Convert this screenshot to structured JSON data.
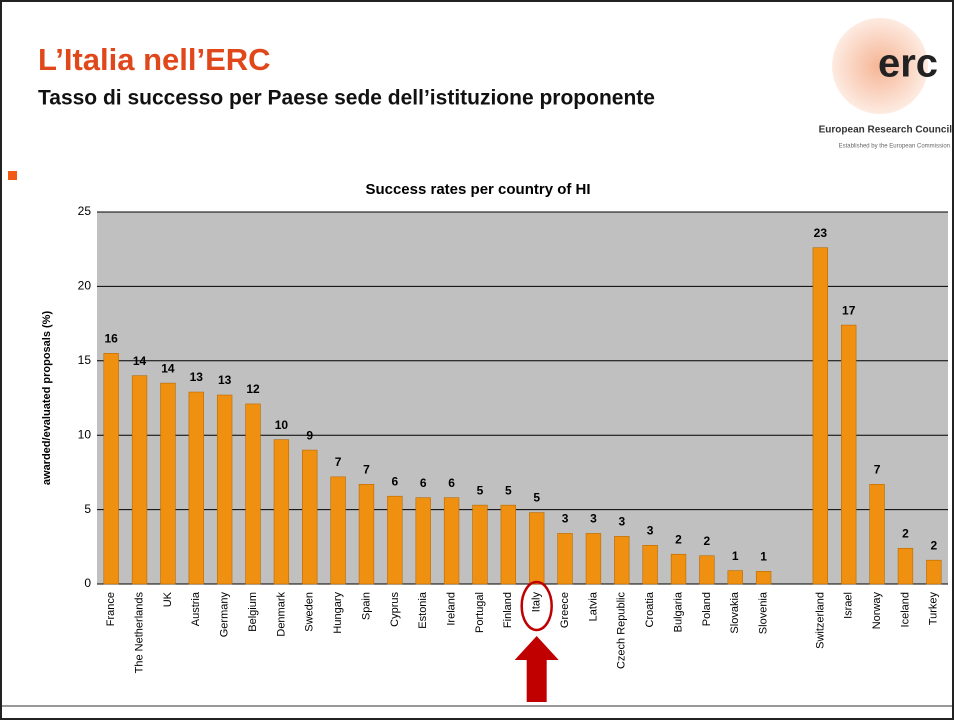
{
  "slide": {
    "title": "L’Italia nell’ERC",
    "subtitle": "Tasso di successo per Paese sede dell’istituzione proponente",
    "logo": {
      "mark": "erc",
      "name": "European Research Council",
      "tagline": "Established by the European Commission"
    }
  },
  "chart_data": {
    "type": "bar",
    "title": "Success rates per country of HI",
    "y_label": "awarded/evaluated  proposals (%)",
    "categories": [
      "France",
      "The Netherlands",
      "UK",
      "Austria",
      "Germany",
      "Belgium",
      "Denmark",
      "Sweden",
      "Hungary",
      "Spain",
      "Cyprus",
      "Estonia",
      "Ireland",
      "Portugal",
      "Finland",
      "Italy",
      "Greece",
      "Latvia",
      "Czech Republic",
      "Croatia",
      "Bulgaria",
      "Poland",
      "Slovakia",
      "Slovenia",
      null,
      "Switzerland",
      "Israel",
      "Norway",
      "Iceland",
      "Turkey"
    ],
    "values": [
      15.5,
      14.0,
      13.5,
      12.9,
      12.7,
      12.1,
      9.7,
      9.0,
      7.2,
      6.7,
      5.9,
      5.8,
      5.8,
      5.3,
      5.3,
      4.8,
      3.4,
      3.4,
      3.2,
      2.6,
      2.0,
      1.9,
      0.9,
      0.85,
      null,
      22.6,
      17.4,
      6.7,
      2.4,
      1.6
    ],
    "value_labels": [
      "16",
      "14",
      "14",
      "13",
      "13",
      "12",
      "10",
      "9",
      "7",
      "7",
      "6",
      "6",
      "6",
      "5",
      "5",
      "5",
      "3",
      "3",
      "3",
      "3",
      "2",
      "2",
      "1",
      "1",
      null,
      "23",
      "17",
      "7",
      "2",
      "2"
    ],
    "color": "#f09010",
    "ylim": [
      0,
      25
    ],
    "yticks": [
      0,
      5,
      10,
      15,
      20,
      25
    ],
    "grid": true
  }
}
